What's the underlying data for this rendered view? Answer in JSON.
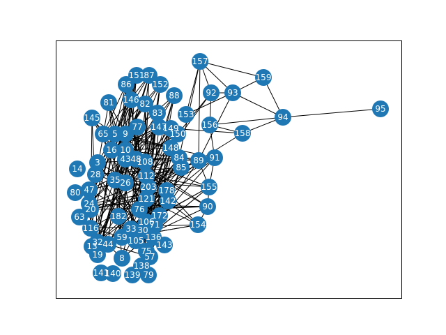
{
  "nodes": [
    "157",
    "159",
    "95",
    "94",
    "93",
    "92",
    "158",
    "156",
    "153",
    "88",
    "152",
    "87",
    "151",
    "86",
    "146",
    "82",
    "83",
    "81",
    "145",
    "77",
    "147",
    "149",
    "150",
    "148",
    "84",
    "89",
    "91",
    "85",
    "108",
    "155",
    "90",
    "154",
    "142",
    "178",
    "172",
    "143",
    "138",
    "139",
    "79",
    "140",
    "141",
    "80",
    "63",
    "14",
    "65",
    "5",
    "9",
    "16",
    "10",
    "43",
    "48",
    "28",
    "3",
    "35",
    "112",
    "26",
    "203",
    "121",
    "47",
    "24",
    "20",
    "76",
    "182",
    "33",
    "30",
    "106",
    "71",
    "116",
    "32",
    "136",
    "13",
    "59",
    "105",
    "75",
    "57",
    "19",
    "8",
    "44"
  ]
}
